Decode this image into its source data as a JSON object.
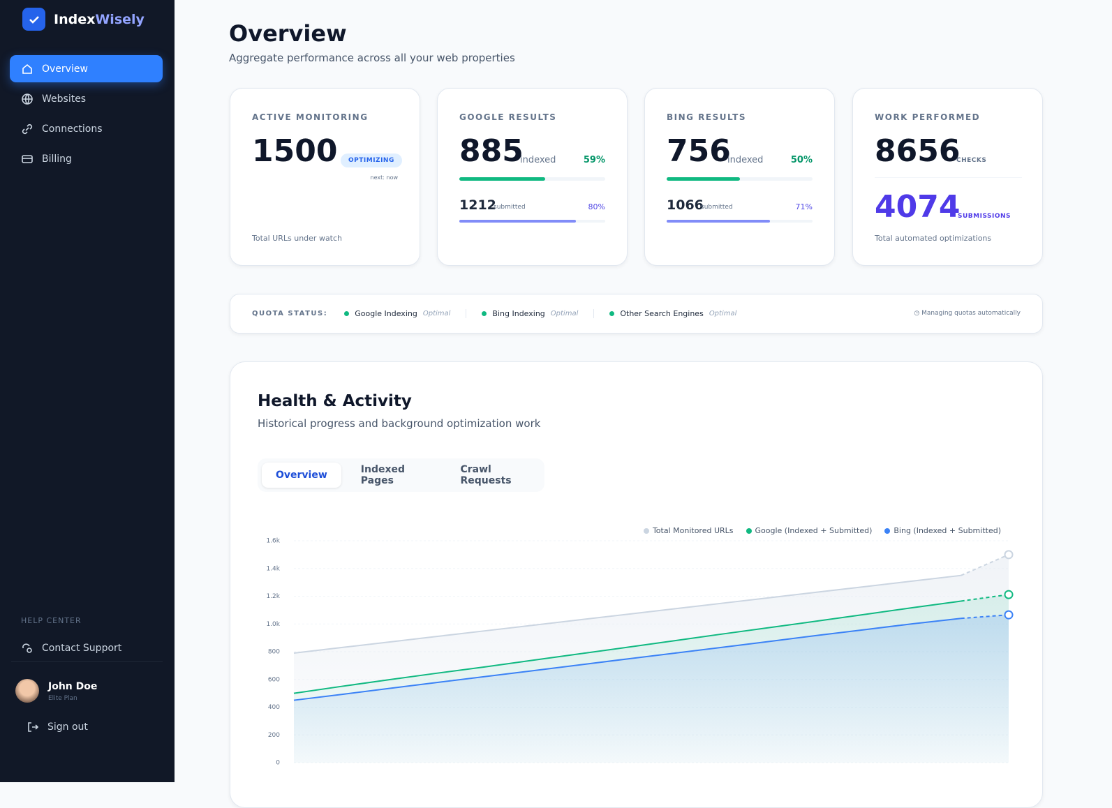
{
  "brand": {
    "part1": "Index",
    "part2": "Wisely"
  },
  "nav": [
    "Overview",
    "Websites",
    "Connections",
    "Billing"
  ],
  "help": {
    "heading": "HELP CENTER",
    "contact": "Contact Support"
  },
  "user": {
    "name": "John Doe",
    "plan": "Elite Plan",
    "signout": "Sign out"
  },
  "header": {
    "title": "Overview",
    "subtitle": "Aggregate performance across all your web properties"
  },
  "cards": [
    {
      "label": "ACTIVE MONITORING",
      "value": 1500,
      "badge": "OPTIMIZING",
      "next": "next: now",
      "footer": "Total URLs under watch"
    },
    {
      "label": "GOOGLE RESULTS",
      "indexed": 885,
      "indexed_label": "indexed",
      "indexed_pct": {
        "value": 59,
        "label": "59%"
      },
      "submitted": 1212,
      "submitted_label": "submitted",
      "submitted_pct": {
        "value": 80,
        "label": "80%"
      }
    },
    {
      "label": "BING RESULTS",
      "indexed": 756,
      "indexed_label": "indexed",
      "indexed_pct": {
        "value": 50,
        "label": "50%"
      },
      "submitted": 1066,
      "submitted_label": "submitted",
      "submitted_pct": {
        "value": 71,
        "label": "71%"
      }
    },
    {
      "label": "WORK PERFORMED",
      "checks": 8656,
      "checks_label": "CHECKS",
      "submissions": 4074,
      "submissions_label": "SUBMISSIONS",
      "footer": "Total automated optimizations"
    }
  ],
  "quota": {
    "label": "QUOTA STATUS:",
    "items": [
      {
        "name": "Google Indexing",
        "status": "Optimal"
      },
      {
        "name": "Bing Indexing",
        "status": "Optimal"
      },
      {
        "name": "Other Search Engines",
        "status": "Optimal"
      }
    ],
    "note": "Managing quotas automatically"
  },
  "health": {
    "title": "Health & Activity",
    "subtitle": "Historical progress and background optimization work",
    "tabs": [
      "Overview",
      "Indexed Pages",
      "Crawl Requests"
    ]
  },
  "chart_data": {
    "type": "line",
    "categories": [
      null,
      null,
      null,
      null,
      null,
      null,
      null,
      null,
      null,
      null,
      null,
      null,
      null,
      null,
      null,
      null
    ],
    "series": [
      {
        "name": "Total Monitored URLs",
        "color": "#cbd5e1",
        "values": [
          790,
          830,
          870,
          910,
          950,
          990,
          1030,
          1070,
          1110,
          1150,
          1190,
          1230,
          1270,
          1310,
          1350,
          1500
        ]
      },
      {
        "name": "Google (Indexed + Submitted)",
        "color": "#10b981",
        "values": [
          500,
          550,
          598,
          645,
          690,
          738,
          785,
          832,
          880,
          928,
          975,
          1022,
          1070,
          1118,
          1165,
          1212
        ]
      },
      {
        "name": "Bing (Indexed + Submitted)",
        "color": "#3b82f6",
        "values": [
          450,
          492,
          535,
          578,
          620,
          662,
          705,
          748,
          790,
          832,
          875,
          918,
          960,
          1002,
          1040,
          1066
        ]
      }
    ],
    "ylim": [
      0,
      1600
    ],
    "yticks": [
      0,
      200,
      400,
      600,
      800,
      {
        "value": 1000,
        "label": "1.0k"
      },
      {
        "value": 1200,
        "label": "1.2k"
      },
      {
        "value": 1400,
        "label": "1.4k"
      },
      {
        "value": 1600,
        "label": "1.6k"
      }
    ],
    "grid": true,
    "legend": "top-right"
  }
}
